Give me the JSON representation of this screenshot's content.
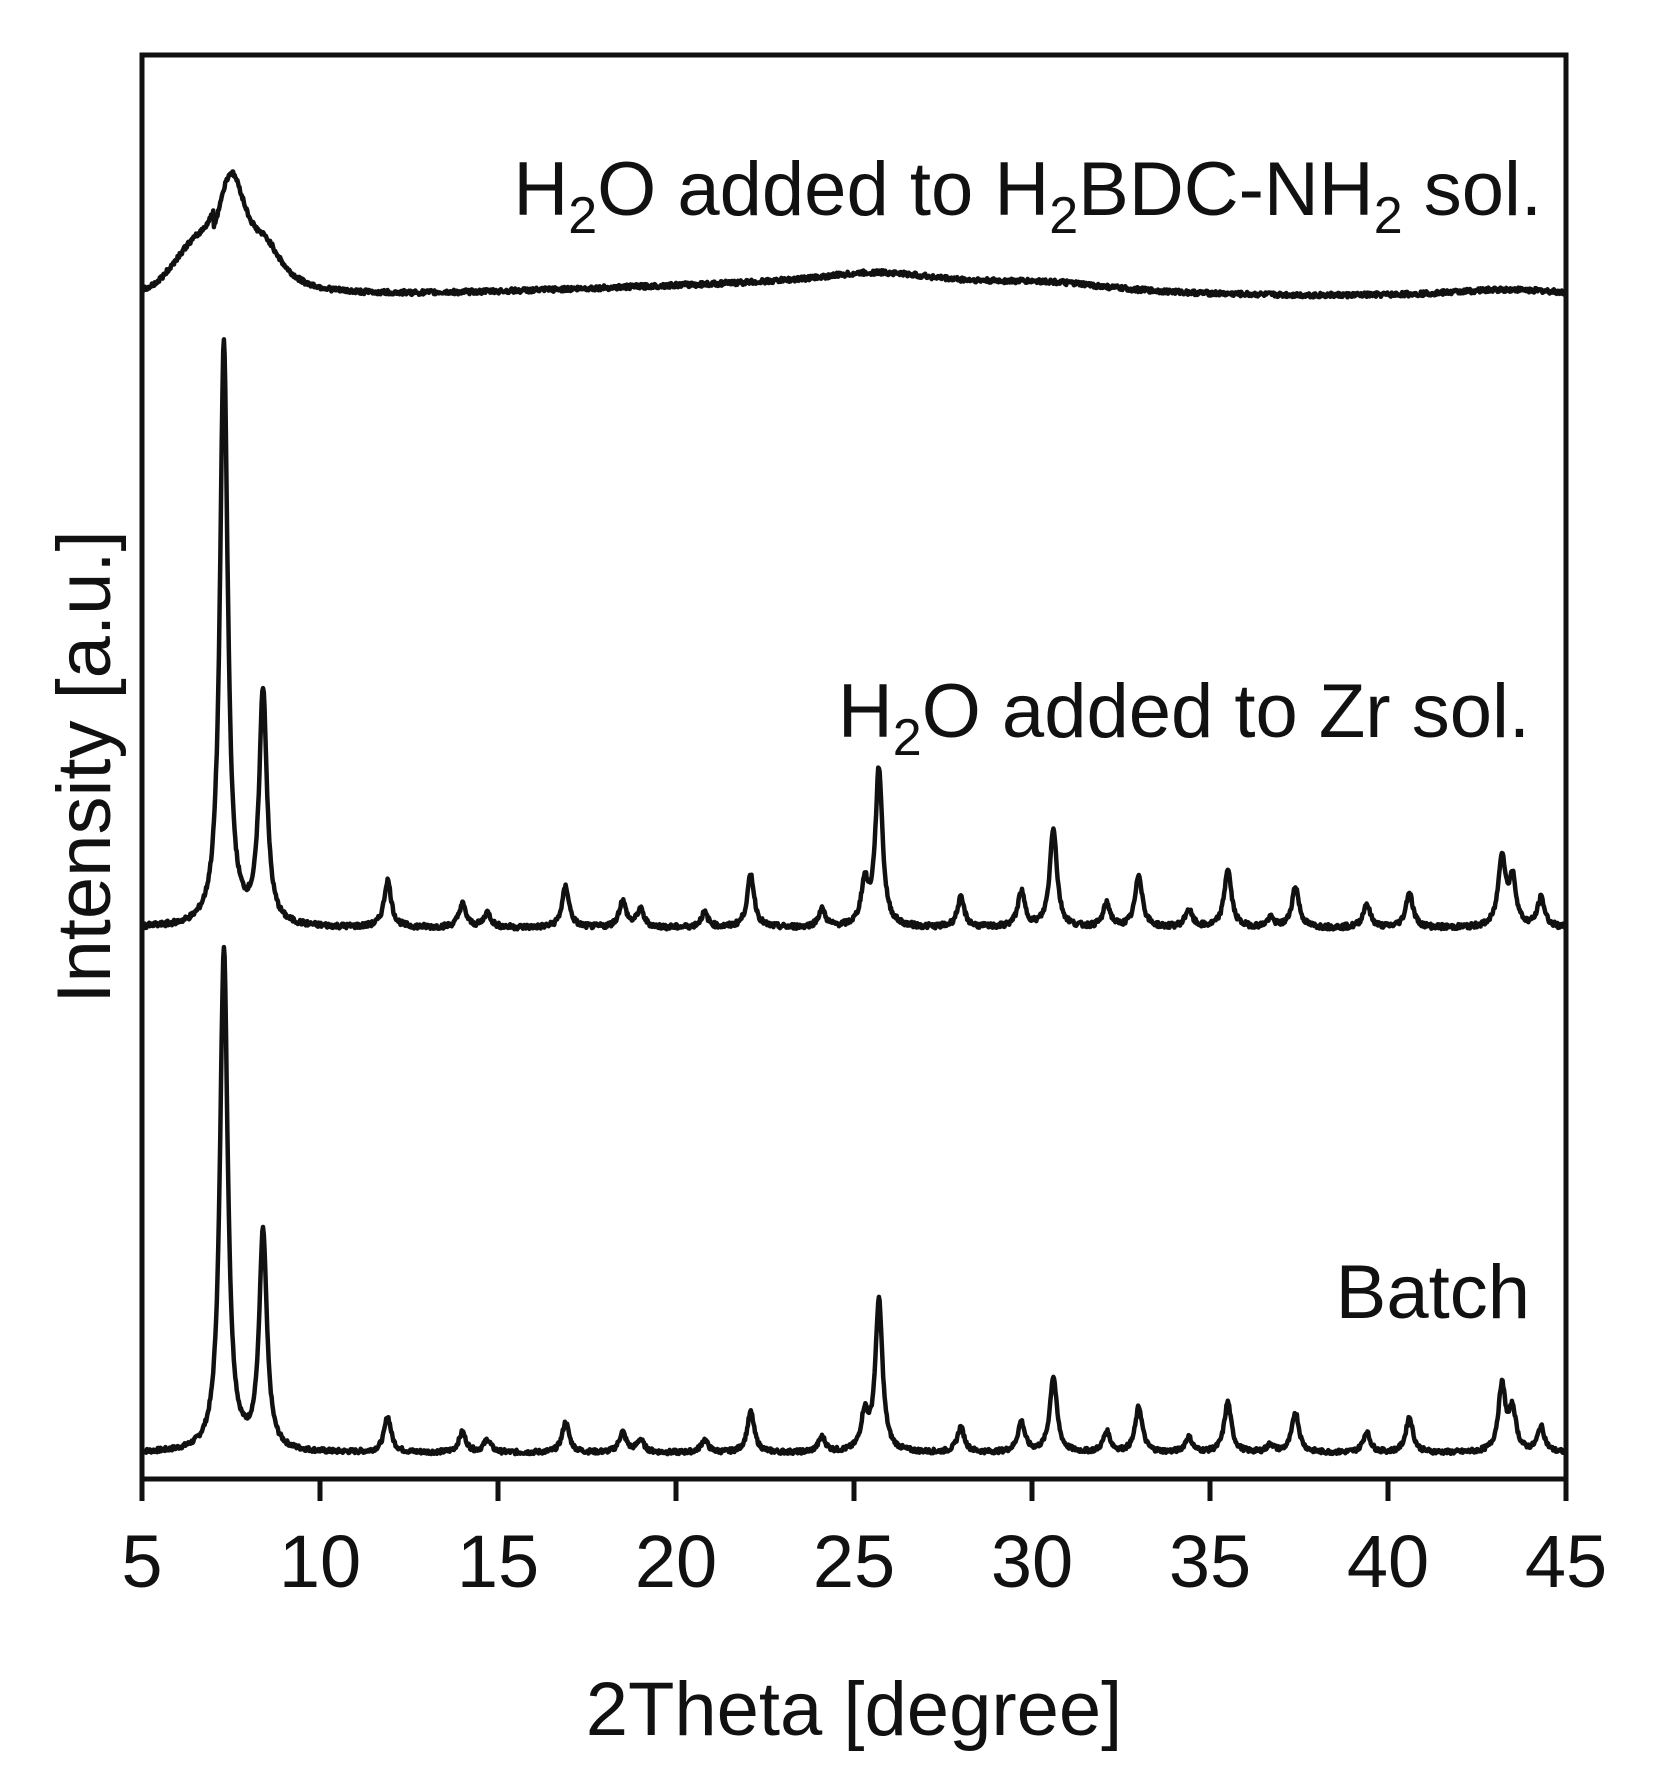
{
  "chart_data": {
    "type": "line",
    "xlabel": "2Theta [degree]",
    "ylabel": "Intensity [a.u.]",
    "xlim": [
      5,
      45
    ],
    "xticks": [
      "5",
      "10",
      "15",
      "20",
      "25",
      "30",
      "35",
      "40",
      "45"
    ],
    "y_ticks_shown": false,
    "grid": false,
    "line_color": "#111111",
    "series": [
      {
        "name": "Batch",
        "label_parts": [
          {
            "t": "Batch",
            "sub": false
          }
        ],
        "baseline": 0,
        "peaks": [
          [
            7.3,
            100
          ],
          [
            8.4,
            43
          ],
          [
            11.9,
            7
          ],
          [
            14.0,
            4
          ],
          [
            14.7,
            2.5
          ],
          [
            16.9,
            6
          ],
          [
            18.5,
            4
          ],
          [
            19.0,
            2.5
          ],
          [
            20.8,
            2.5
          ],
          [
            22.1,
            8
          ],
          [
            24.1,
            3
          ],
          [
            25.3,
            7
          ],
          [
            25.7,
            30
          ],
          [
            28.0,
            5
          ],
          [
            29.7,
            6
          ],
          [
            30.6,
            15
          ],
          [
            32.1,
            4
          ],
          [
            33.0,
            9
          ],
          [
            34.4,
            3
          ],
          [
            35.5,
            10
          ],
          [
            36.7,
            1.5
          ],
          [
            37.4,
            8
          ],
          [
            39.4,
            4
          ],
          [
            40.6,
            7
          ],
          [
            43.2,
            13
          ],
          [
            43.5,
            8
          ],
          [
            44.3,
            5
          ]
        ]
      },
      {
        "name": "H2O added to Zr sol.",
        "label_parts": [
          {
            "t": "H",
            "sub": false
          },
          {
            "t": "2",
            "sub": true
          },
          {
            "t": "O added to Zr sol.",
            "sub": false
          }
        ],
        "baseline": 0,
        "peaks": [
          [
            7.3,
            100
          ],
          [
            8.4,
            40
          ],
          [
            11.9,
            8
          ],
          [
            14.0,
            4
          ],
          [
            14.7,
            2.5
          ],
          [
            16.9,
            7
          ],
          [
            18.5,
            4.5
          ],
          [
            19.0,
            3
          ],
          [
            20.8,
            2.5
          ],
          [
            22.1,
            9
          ],
          [
            24.1,
            3
          ],
          [
            25.3,
            7
          ],
          [
            25.7,
            27
          ],
          [
            28.0,
            5
          ],
          [
            29.7,
            6
          ],
          [
            30.6,
            17
          ],
          [
            32.1,
            4
          ],
          [
            33.0,
            9
          ],
          [
            34.4,
            3
          ],
          [
            35.5,
            10
          ],
          [
            36.7,
            1.5
          ],
          [
            37.4,
            7
          ],
          [
            39.4,
            4
          ],
          [
            40.6,
            6
          ],
          [
            43.2,
            12
          ],
          [
            43.5,
            8
          ],
          [
            44.3,
            5
          ]
        ]
      },
      {
        "name": "H2O added to H2BDC-NH2 sol.",
        "label_parts": [
          {
            "t": "H",
            "sub": false
          },
          {
            "t": "2",
            "sub": true
          },
          {
            "t": "O added to H",
            "sub": false
          },
          {
            "t": "2",
            "sub": true
          },
          {
            "t": "BDC-NH",
            "sub": false
          },
          {
            "t": "2",
            "sub": true
          },
          {
            "t": " sol.",
            "sub": false
          }
        ],
        "baseline": 0,
        "peaks": [
          [
            7.5,
            22
          ],
          [
            8.5,
            6
          ],
          [
            25.7,
            2.5
          ],
          [
            30.5,
            1.5
          ],
          [
            43.4,
            1.5
          ]
        ],
        "broad": true
      }
    ]
  }
}
